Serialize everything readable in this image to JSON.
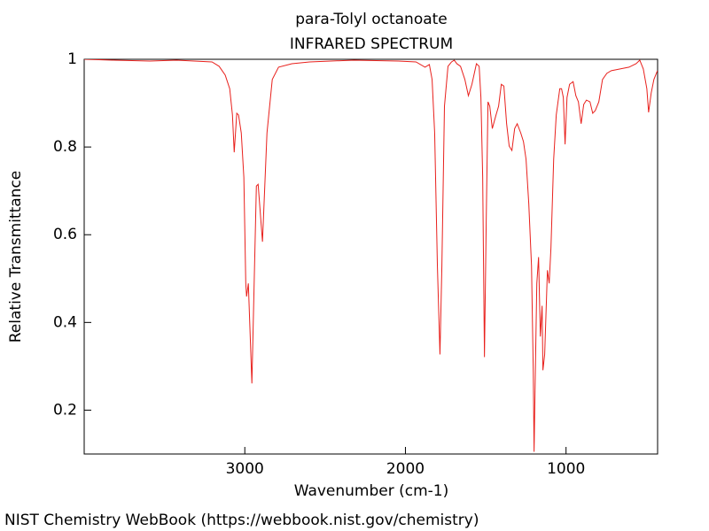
{
  "chart_data": {
    "type": "line",
    "title": "para-Tolyl octanoate",
    "subtitle": "INFRARED SPECTRUM",
    "x_label": "Wavenumber (cm-1)",
    "y_label": "Relative Transmittance",
    "footer": "NIST Chemistry WebBook (https://webbook.nist.gov/chemistry)",
    "color": "#e8201c",
    "xlim": [
      4000,
      430
    ],
    "ylim": [
      0.1,
      1
    ],
    "xticks": [
      3000,
      2000,
      1000
    ],
    "yticks": [
      0.2,
      0.4,
      0.6,
      0.8,
      1
    ],
    "x": [
      4000,
      3812,
      3591,
      3425,
      3204,
      3160,
      3122,
      3094,
      3077,
      3066,
      3050,
      3039,
      3022,
      3006,
      2994,
      2989,
      2978,
      2956,
      2928,
      2917,
      2890,
      2862,
      2829,
      2790,
      2707,
      2597,
      2320,
      2044,
      1934,
      1878,
      1851,
      1834,
      1818,
      1801,
      1785,
      1773,
      1757,
      1735,
      1713,
      1696,
      1680,
      1657,
      1630,
      1608,
      1586,
      1558,
      1541,
      1530,
      1519,
      1508,
      1497,
      1486,
      1475,
      1459,
      1436,
      1420,
      1403,
      1387,
      1370,
      1354,
      1337,
      1320,
      1304,
      1282,
      1265,
      1249,
      1232,
      1215,
      1204,
      1199,
      1193,
      1182,
      1171,
      1160,
      1149,
      1144,
      1133,
      1116,
      1105,
      1094,
      1077,
      1061,
      1039,
      1028,
      1017,
      1006,
      994,
      978,
      956,
      939,
      923,
      906,
      890,
      873,
      851,
      834,
      818,
      796,
      773,
      746,
      718,
      663,
      608,
      564,
      541,
      519,
      497,
      486,
      470,
      453,
      442,
      431
    ],
    "values": [
      1.0,
      0.998,
      0.996,
      0.998,
      0.994,
      0.984,
      0.964,
      0.933,
      0.873,
      0.788,
      0.877,
      0.873,
      0.832,
      0.731,
      0.489,
      0.459,
      0.489,
      0.261,
      0.711,
      0.715,
      0.584,
      0.832,
      0.954,
      0.982,
      0.99,
      0.994,
      0.998,
      0.996,
      0.994,
      0.982,
      0.988,
      0.954,
      0.832,
      0.529,
      0.327,
      0.529,
      0.893,
      0.984,
      0.994,
      0.998,
      0.99,
      0.984,
      0.954,
      0.917,
      0.943,
      0.99,
      0.984,
      0.913,
      0.731,
      0.321,
      0.63,
      0.903,
      0.893,
      0.842,
      0.873,
      0.893,
      0.943,
      0.939,
      0.853,
      0.802,
      0.792,
      0.842,
      0.853,
      0.832,
      0.812,
      0.772,
      0.671,
      0.529,
      0.287,
      0.105,
      0.246,
      0.489,
      0.549,
      0.368,
      0.438,
      0.291,
      0.327,
      0.519,
      0.489,
      0.57,
      0.772,
      0.873,
      0.933,
      0.933,
      0.913,
      0.806,
      0.913,
      0.943,
      0.949,
      0.917,
      0.903,
      0.853,
      0.897,
      0.907,
      0.903,
      0.877,
      0.883,
      0.903,
      0.954,
      0.968,
      0.974,
      0.978,
      0.982,
      0.99,
      0.998,
      0.978,
      0.933,
      0.879,
      0.923,
      0.954,
      0.964,
      0.974
    ]
  }
}
